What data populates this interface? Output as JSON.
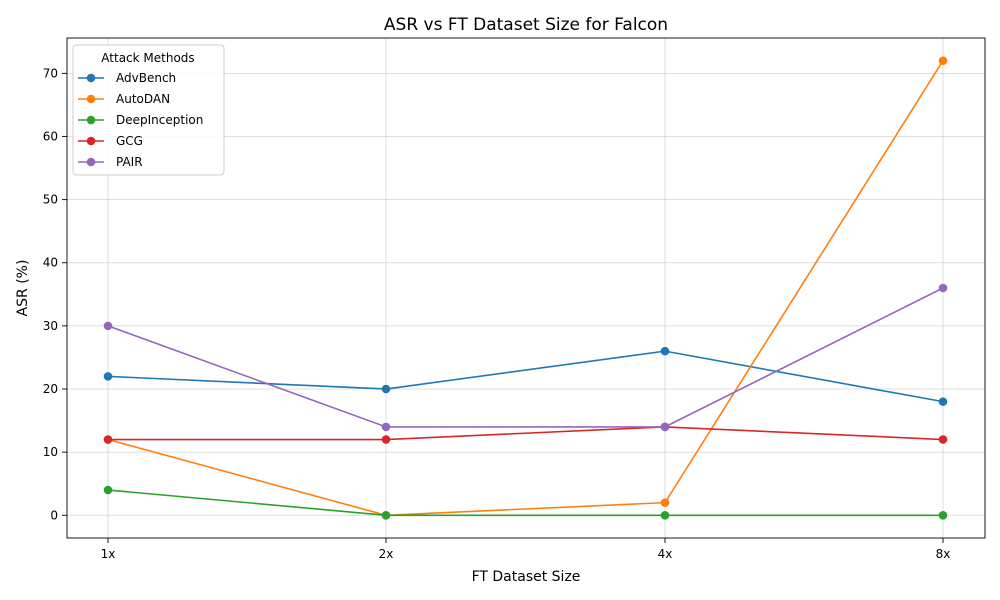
{
  "chart_data": {
    "type": "line",
    "title": "ASR vs FT Dataset Size for Falcon",
    "xlabel": "FT Dataset Size",
    "ylabel": "ASR (%)",
    "categories": [
      "1x",
      "2x",
      "4x",
      "8x"
    ],
    "ylim": [
      -3.6,
      75.6
    ],
    "yticks": [
      0,
      10,
      20,
      30,
      40,
      50,
      60,
      70
    ],
    "grid": true,
    "legend": {
      "title": "Attack Methods",
      "placement": "top-left"
    },
    "series": [
      {
        "name": "AdvBench",
        "color": "#1f77b4",
        "values": [
          22,
          20,
          26,
          18
        ]
      },
      {
        "name": "AutoDAN",
        "color": "#ff7f0e",
        "values": [
          12,
          0,
          2,
          72
        ]
      },
      {
        "name": "DeepInception",
        "color": "#2ca02c",
        "values": [
          4,
          0,
          0,
          0
        ]
      },
      {
        "name": "GCG",
        "color": "#d62728",
        "values": [
          12,
          12,
          14,
          12
        ]
      },
      {
        "name": "PAIR",
        "color": "#9467bd",
        "values": [
          30,
          14,
          14,
          36
        ]
      }
    ]
  }
}
